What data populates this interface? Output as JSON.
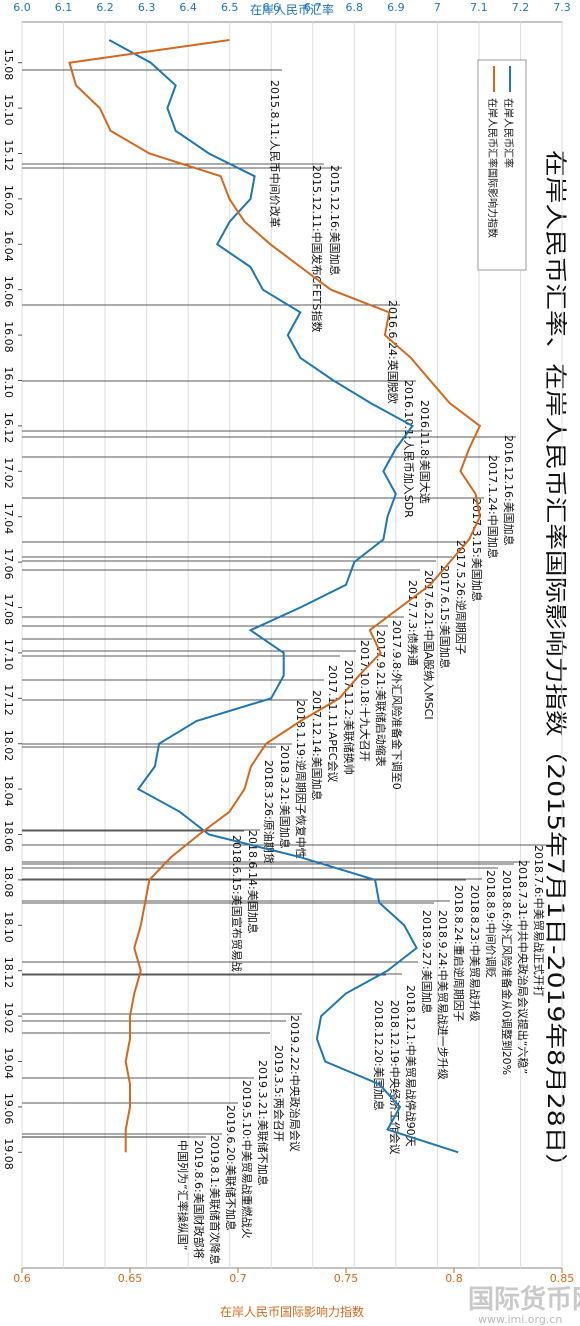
{
  "chart_data": {
    "type": "line",
    "title": "在岸人民币汇率、在岸人民币汇率国际影响力指数（2015年7月1日-2019年8月28日）",
    "ylabel": "在岸人民币汇率",
    "y2label": "在岸人民币国际影响力指数",
    "watermark": "国际货币网",
    "watermark_url": "www.imi.org.cn",
    "categories": [
      null,
      "15.08",
      null,
      "15.10",
      null,
      "15.12",
      null,
      "16.02",
      null,
      "16.04",
      null,
      "16.06",
      null,
      "16.08",
      null,
      "16.10",
      null,
      "16.12",
      null,
      "17.02",
      null,
      "17.04",
      null,
      "17.06",
      null,
      "17.08",
      null,
      "17.10",
      null,
      "17.12",
      null,
      "18.02",
      null,
      "18.04",
      null,
      "18.06",
      null,
      "18.08",
      null,
      "18.10",
      null,
      "18.12",
      null,
      "19.02",
      null,
      "19.04",
      null,
      "19.06",
      null,
      "19.08"
    ],
    "series": [
      {
        "name": "在岸人民币汇率",
        "color": "#1f77b4",
        "values": [
          6.21,
          6.31,
          6.37,
          6.35,
          6.37,
          6.45,
          6.56,
          6.55,
          6.5,
          6.47,
          6.55,
          6.58,
          6.67,
          6.64,
          6.67,
          6.75,
          6.84,
          6.94,
          6.9,
          6.87,
          6.9,
          6.88,
          6.87,
          6.8,
          6.78,
          6.67,
          6.55,
          6.63,
          6.63,
          6.6,
          6.42,
          6.33,
          6.32,
          6.28,
          6.38,
          6.45,
          6.67,
          6.85,
          6.86,
          6.92,
          6.95,
          6.88,
          6.78,
          6.72,
          6.71,
          6.73,
          6.86,
          6.91,
          6.88,
          7.05
        ]
      },
      {
        "name": "在岸人民币汇率国际影响力指数",
        "color": "#d2691e",
        "axis": "y2",
        "values": [
          0.696,
          0.622,
          0.625,
          0.636,
          0.641,
          0.659,
          0.692,
          0.696,
          0.703,
          0.715,
          0.729,
          0.743,
          0.77,
          0.768,
          0.78,
          0.789,
          0.798,
          0.812,
          0.807,
          0.803,
          0.81,
          0.812,
          0.807,
          0.798,
          0.789,
          0.775,
          0.761,
          0.766,
          0.756,
          0.747,
          0.729,
          0.713,
          0.706,
          0.703,
          0.696,
          0.682,
          0.669,
          0.659,
          0.657,
          0.655,
          0.652,
          0.655,
          0.652,
          0.65,
          0.65,
          0.648,
          0.65,
          0.65,
          0.648,
          0.648
        ]
      }
    ],
    "ylim": [
      6.0,
      7.3
    ],
    "yticks": [
      {
        "value": 6.0,
        "label": "6.0"
      },
      6.1,
      6.2,
      6.3,
      6.4,
      6.5,
      6.6,
      6.7,
      6.8,
      6.9,
      {
        "value": 7.0,
        "label": "7"
      },
      7.1,
      7.2,
      7.3
    ],
    "y2lim": [
      0.6,
      0.85
    ],
    "y2ticks": [
      0.6,
      0.65,
      0.7,
      0.75,
      0.8,
      0.85
    ],
    "grid": true,
    "annotations": [
      "2015.8.11:人民币中间价改革",
      "2015.12.16:美国加息",
      "2015.12.11:中国发布CFETS指数",
      "2016.6.24:英国脱欧",
      "2016.10.1:人民币加入SDR",
      "2016.11.8:美国大选",
      "2016.12.16:美国加息",
      "2017.1.24:中国加息",
      "2017.3.15:美国加息",
      "2017.5.26:逆周期因子",
      "2017.6.15:美国加息",
      "2017.6.21:中国A股纳入MSCI",
      "2017.7.3:债券通",
      "2017.9.8:外汇风险准备金下调至0",
      "2017.9.21:美联储启动缩表",
      "2017.10.18:十九大召开",
      "2017.11.2:美联储换帅",
      "2017.11.11:APEC会议",
      "2017.12.14:美国加息",
      "2018.1.19:逆周期因子恢复中性",
      "2018.3.21:美国加息",
      "2018.3.26:原油期货",
      "2018.6.14:美国加息",
      "2018.6.15:美国宣布贸易战",
      "2018.7.6:中美贸易战正式开打",
      "2018.7.31:中共中央政治局会议提出“六稳”",
      "2018.8.6:外汇风险准备金从0调整到20%",
      "2018.8.9:中间价调贬",
      "2018.8.23:中美贸易战升级",
      "2018.8.24:重启逆周期因子",
      "2018.9.24:中美贸易战进一步升级",
      "2018.9.27:美国加息",
      "2018.12.1:中美贸易战停战90天",
      "2018.12.19:中央经济工作会议",
      "2018.12.20:美国加息",
      "2019.2.22:中央政治局会议",
      "2019.3.5:两会召开",
      "2019.3.21:美联储不加息",
      "2019.5.10:中美贸易战重燃战火",
      "2019.6.20:美联储不加息",
      "2019.8.1:美联储首次降息",
      "2019.8.6:美国财政部将",
      "中国列为“汇率操纵国”"
    ]
  }
}
